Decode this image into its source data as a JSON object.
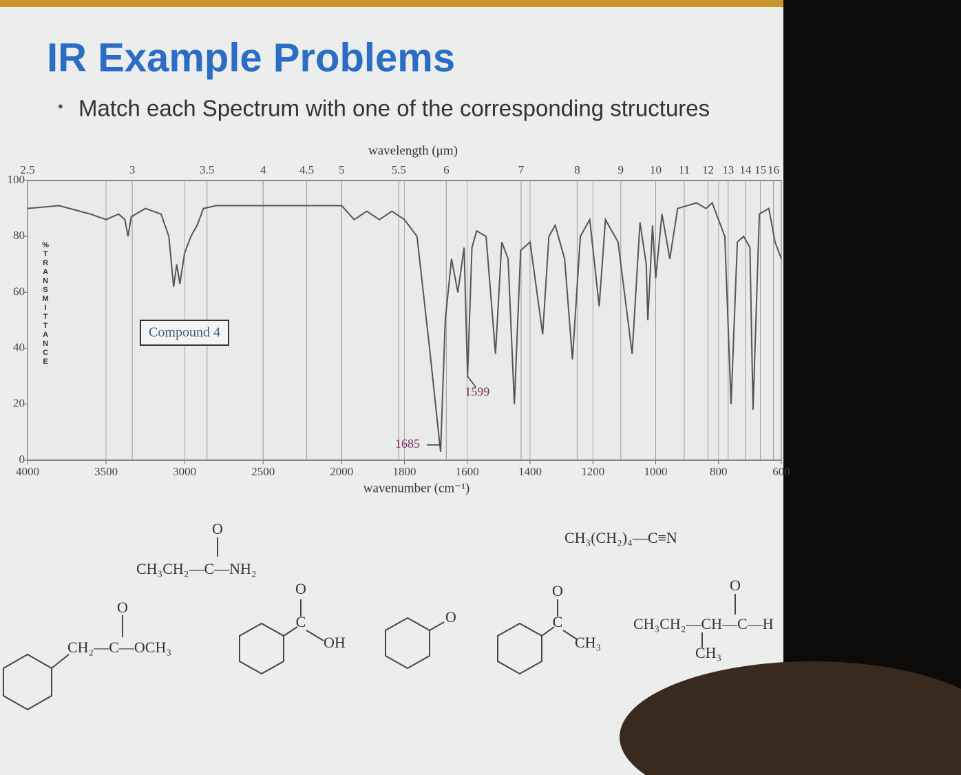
{
  "header": {
    "title": "IR Example Problems",
    "bullet": "Match each Spectrum with one of the corresponding structures"
  },
  "chart_data": {
    "type": "line",
    "title": "wavelength (μm)",
    "x_label": "wavenumber (cm⁻¹)",
    "y_label": "%TRANSMITTANCE",
    "inset_label": "Compound 4",
    "xlim": [
      4000,
      600
    ],
    "x_scale_break": 2000,
    "xticks": [
      4000,
      3500,
      3000,
      2500,
      2000,
      1800,
      1600,
      1400,
      1200,
      1000,
      800,
      600
    ],
    "x2ticks": [
      2.5,
      3,
      3.5,
      4,
      4.5,
      5,
      5.5,
      6,
      7,
      8,
      9,
      10,
      11,
      12,
      13,
      14,
      15,
      16
    ],
    "ylim": [
      0,
      100
    ],
    "yticks": [
      0,
      20,
      40,
      60,
      80,
      100
    ],
    "grid": true,
    "color": "#555555",
    "x": [
      4000,
      3800,
      3600,
      3500,
      3420,
      3380,
      3360,
      3340,
      3250,
      3150,
      3100,
      3070,
      3050,
      3030,
      3000,
      2960,
      2920,
      2880,
      2800,
      2000,
      1960,
      1920,
      1880,
      1840,
      1800,
      1760,
      1720,
      1685,
      1670,
      1650,
      1630,
      1610,
      1599,
      1585,
      1570,
      1540,
      1510,
      1490,
      1470,
      1450,
      1430,
      1400,
      1360,
      1340,
      1320,
      1290,
      1265,
      1240,
      1210,
      1180,
      1160,
      1120,
      1075,
      1050,
      1030,
      1025,
      1010,
      1000,
      980,
      955,
      930,
      870,
      840,
      820,
      780,
      760,
      740,
      720,
      700,
      690,
      670,
      640,
      620,
      610,
      600
    ],
    "values": [
      90,
      91,
      88,
      86,
      88,
      86,
      80,
      87,
      90,
      88,
      80,
      62,
      70,
      63,
      74,
      80,
      84,
      90,
      91,
      91,
      86,
      89,
      86,
      89,
      86,
      80,
      40,
      3,
      50,
      72,
      60,
      76,
      30,
      76,
      82,
      80,
      38,
      78,
      72,
      20,
      75,
      78,
      45,
      80,
      84,
      72,
      36,
      80,
      86,
      55,
      86,
      78,
      38,
      85,
      70,
      50,
      84,
      65,
      88,
      72,
      90,
      92,
      90,
      92,
      80,
      20,
      78,
      80,
      76,
      18,
      88,
      90,
      78,
      75,
      72
    ],
    "annotations": [
      {
        "label": 1685
      },
      {
        "label": 1599
      }
    ]
  },
  "structures": [
    {
      "labels": [
        "O",
        "CH₃CH₂—C—NH₂"
      ]
    },
    {
      "labels": [
        "CH₃(CH₂)₄—C≡N"
      ]
    },
    {
      "labels": [
        "O",
        "CH₂—C—OCH₃"
      ]
    },
    {
      "labels": [
        "O",
        "C",
        "OH"
      ]
    },
    {
      "labels": [
        "O"
      ]
    },
    {
      "labels": [
        "O",
        "C",
        "CH₃"
      ]
    },
    {
      "labels": [
        "O",
        "CH₃CH₂—CH—C—H",
        "CH₃"
      ]
    }
  ]
}
